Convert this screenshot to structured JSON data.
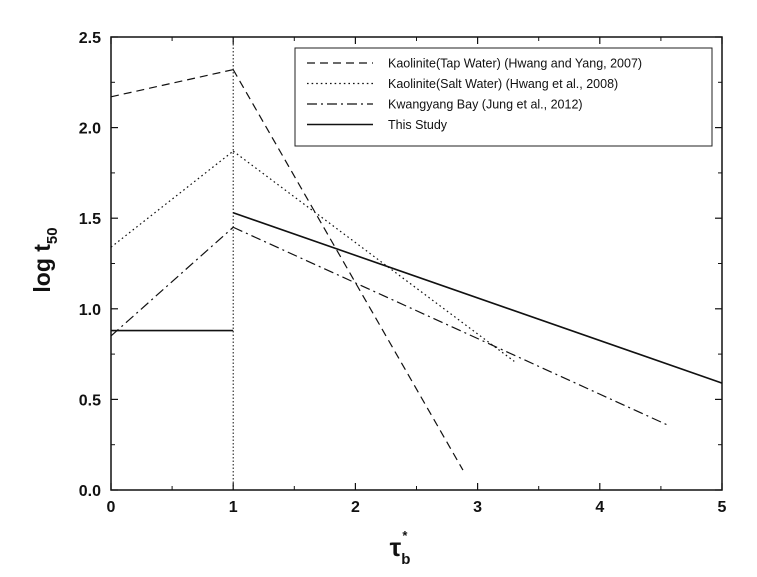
{
  "chart_data": {
    "type": "line",
    "xlabel": "τ",
    "xlabel_sub": "b",
    "xlabel_sup": "*",
    "ylabel": "log t",
    "ylabel_sub": "50",
    "xlim": [
      0,
      5
    ],
    "ylim": [
      0,
      2.5
    ],
    "xticks": [
      "0",
      "1",
      "2",
      "3",
      "4",
      "5"
    ],
    "yticks": [
      "0.0",
      "0.5",
      "1.0",
      "1.5",
      "2.0",
      "2.5"
    ],
    "grid": false,
    "legend_position": "top-right",
    "reference_line_x": 1,
    "series": [
      {
        "name": "Kaolinite(Tap Water) (Hwang and Yang, 2007)",
        "style": "dashed",
        "segments": [
          [
            [
              0,
              2.17
            ],
            [
              1,
              2.32
            ]
          ],
          [
            [
              1,
              2.32
            ],
            [
              2.88,
              0.11
            ]
          ]
        ]
      },
      {
        "name": "Kaolinite(Salt Water) (Hwang et al., 2008)",
        "style": "dotted",
        "segments": [
          [
            [
              0,
              1.34
            ],
            [
              1,
              1.87
            ]
          ],
          [
            [
              1,
              1.87
            ],
            [
              3.3,
              0.71
            ]
          ]
        ]
      },
      {
        "name": "Kwangyang Bay (Jung et al., 2012)",
        "style": "dashdot",
        "segments": [
          [
            [
              0,
              0.85
            ],
            [
              1,
              1.45
            ]
          ],
          [
            [
              1,
              1.45
            ],
            [
              4.55,
              0.36
            ]
          ]
        ]
      },
      {
        "name": "This Study",
        "style": "solid",
        "segments": [
          [
            [
              0,
              0.88
            ],
            [
              1,
              0.88
            ]
          ],
          [
            [
              1,
              1.53
            ],
            [
              5,
              0.59
            ]
          ]
        ]
      }
    ]
  }
}
